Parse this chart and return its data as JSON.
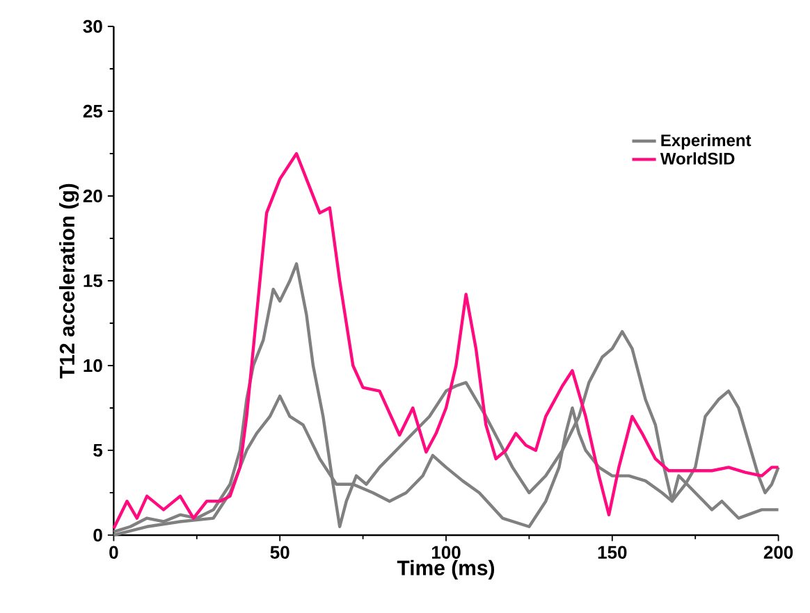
{
  "chart_data": {
    "type": "line",
    "xlabel": "Time (ms)",
    "ylabel": "T12 acceleration (g)",
    "xlim": [
      0,
      200
    ],
    "ylim": [
      0,
      30
    ],
    "xticks": [
      0,
      50,
      100,
      150,
      200
    ],
    "yticks": [
      0,
      5,
      10,
      15,
      20,
      25,
      30
    ],
    "grid": false,
    "legend": "top right",
    "marker": "none",
    "line_style": "solid",
    "series": [
      {
        "name": "Experiment",
        "color": "#808080",
        "x": [
          0,
          5,
          10,
          15,
          20,
          25,
          30,
          35,
          38,
          40,
          42,
          45,
          48,
          50,
          53,
          55,
          58,
          60,
          63,
          66,
          68,
          70,
          73,
          76,
          80,
          85,
          90,
          95,
          100,
          103,
          106,
          109,
          112,
          116,
          120,
          125,
          130,
          135,
          140,
          143,
          147,
          150,
          153,
          156,
          160,
          163,
          165,
          168,
          172,
          175,
          178,
          182,
          185,
          188,
          191,
          194,
          196,
          198,
          200
        ],
        "values": [
          0.2,
          0.5,
          1,
          0.8,
          1.2,
          1,
          1.5,
          3,
          5,
          8,
          10,
          11.5,
          14.5,
          13.8,
          15,
          16,
          13,
          10,
          7,
          3,
          0.5,
          2,
          3.5,
          3,
          4,
          5,
          6,
          7,
          8.5,
          8.8,
          9,
          8,
          7,
          5.5,
          4,
          2.5,
          3.5,
          5,
          7,
          9,
          10.5,
          11,
          12,
          11,
          8,
          6.5,
          4.5,
          2,
          3,
          4,
          7,
          8,
          8.5,
          7.5,
          5.5,
          3.5,
          2.5,
          3,
          4
        ]
      },
      {
        "color": "#808080",
        "x": [
          0,
          10,
          20,
          30,
          35,
          40,
          43,
          47,
          50,
          53,
          57,
          62,
          67,
          72,
          78,
          83,
          88,
          93,
          96,
          100,
          105,
          110,
          117,
          125,
          130,
          134,
          136,
          138,
          140,
          142,
          146,
          150,
          155,
          160,
          165,
          168,
          170,
          175,
          180,
          183,
          188,
          195,
          200
        ],
        "values": [
          0,
          0.5,
          0.8,
          1,
          2.5,
          5,
          6,
          7,
          8.2,
          7,
          6.5,
          4.5,
          3,
          3,
          2.5,
          2,
          2.5,
          3.5,
          4.7,
          4,
          3.2,
          2.5,
          1,
          0.5,
          2,
          4,
          6,
          7.5,
          6,
          5,
          4,
          3.5,
          3.5,
          3.2,
          2.5,
          2,
          3.5,
          2.5,
          1.5,
          2,
          1,
          1.5,
          1.5
        ]
      },
      {
        "name": "WorldSID",
        "color": "#ff0a7f",
        "x": [
          0,
          4,
          7,
          10,
          15,
          20,
          24,
          28,
          32,
          35,
          38,
          40,
          43,
          46,
          50,
          55,
          58,
          62,
          65,
          68,
          72,
          75,
          80,
          86,
          90,
          94,
          97,
          100,
          103,
          106,
          109,
          112,
          115,
          118,
          121,
          124,
          127,
          130,
          135,
          138,
          142,
          146,
          149,
          152,
          156,
          159,
          163,
          167,
          172,
          180,
          185,
          190,
          195,
          198,
          200
        ],
        "values": [
          0.4,
          2,
          1,
          2.3,
          1.5,
          2.3,
          1,
          2,
          2,
          2.3,
          4,
          7,
          13,
          19,
          21,
          22.5,
          21,
          19,
          19.3,
          15,
          10,
          8.7,
          8.5,
          5.9,
          7.5,
          4.9,
          6,
          7.5,
          10,
          14.2,
          11,
          6.5,
          4.5,
          5,
          6,
          5.3,
          5,
          7,
          8.8,
          9.7,
          7,
          3.5,
          1.2,
          4,
          7,
          6,
          4.5,
          3.8,
          3.8,
          3.8,
          4,
          3.7,
          3.5,
          4,
          4
        ]
      }
    ]
  }
}
